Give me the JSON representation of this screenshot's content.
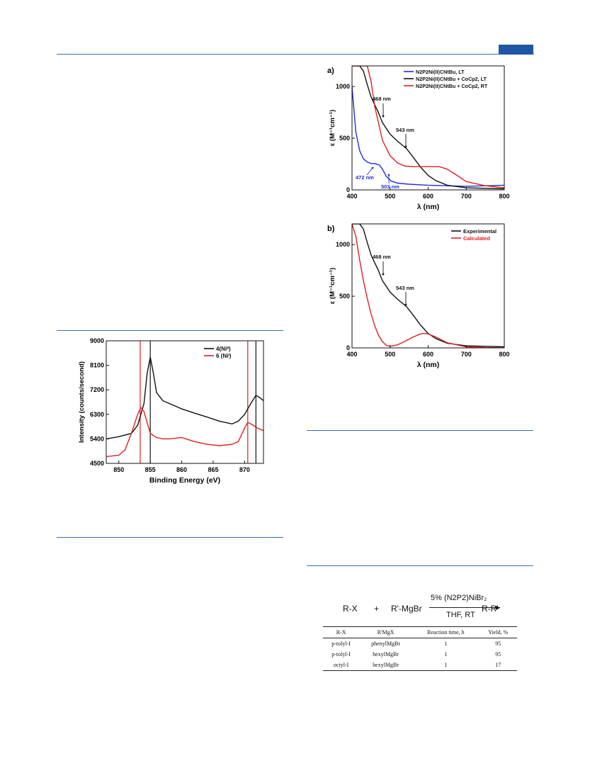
{
  "colors": {
    "rule": "#3b6fb0",
    "black": "#111111",
    "red": "#e02020",
    "blue": "#2030e0"
  },
  "uv_a": {
    "panel_label": "a)",
    "legend": [
      "N2P2Ni(II)CNtBu, LT",
      "N2P2Ni(II)CNtBu + CoCp2, LT",
      "N2P2Ni(II)CNtBu + CoCp2, RT"
    ],
    "annotations": [
      "468 nm",
      "543 nm",
      "472 nm",
      "503 nm"
    ],
    "xlabel": "λ (nm)",
    "ylabel": "ε (M⁻¹cm⁻¹)",
    "xticks": [
      "400",
      "500",
      "600",
      "700",
      "800"
    ],
    "yticks": [
      "0",
      "500",
      "1000"
    ]
  },
  "uv_b": {
    "panel_label": "b)",
    "legend": [
      "Experimental",
      "Calculated"
    ],
    "annotations": [
      "468 nm",
      "543 nm"
    ],
    "xlabel": "λ (nm)",
    "ylabel": "ε (M⁻¹cm⁻¹)",
    "xticks": [
      "400",
      "500",
      "600",
      "700",
      "800"
    ],
    "yticks": [
      "0",
      "500",
      "1000"
    ]
  },
  "xps": {
    "legend": [
      "4(Niᴵᴵ)",
      "6 (Niᴵ)"
    ],
    "xlabel": "Binding Energy (eV)",
    "ylabel": "Intensity (counts/second)",
    "xticks": [
      "850",
      "855",
      "860",
      "865",
      "870"
    ],
    "yticks": [
      "4500",
      "5400",
      "6300",
      "7200",
      "8100",
      "9000"
    ]
  },
  "scheme": {
    "reactant1": "R-X",
    "plus": "+",
    "reactant2": "R'-MgBr",
    "catalyst": "5% (N2P2)NiBr₂",
    "conditions": "THF, RT",
    "product": "R-R'"
  },
  "table": {
    "headers": [
      "R-X",
      "R'MgX",
      "Reaction time, h",
      "Yield, %"
    ],
    "rows": [
      [
        "p-tolyl-I",
        "phenylMgBr",
        "1",
        "95"
      ],
      [
        "p-tolyl-I",
        "hexylMgBr",
        "1",
        "95"
      ],
      [
        "octyl-I",
        "hexylMgBr",
        "1",
        "17"
      ]
    ]
  },
  "chart_data": [
    {
      "type": "line",
      "title": "a)",
      "xlabel": "λ (nm)",
      "ylabel": "ε (M⁻¹cm⁻¹)",
      "xlim": [
        400,
        800
      ],
      "ylim": [
        0,
        1200
      ],
      "legend_position": "top-right",
      "series": [
        {
          "name": "N2P2Ni(II)CNtBu, LT",
          "color": "#2030e0",
          "x": [
            400,
            405,
            410,
            420,
            430,
            440,
            450,
            460,
            472,
            480,
            490,
            503,
            520,
            550,
            600,
            650,
            700,
            750,
            800
          ],
          "y": [
            1000,
            780,
            560,
            380,
            300,
            270,
            255,
            255,
            240,
            200,
            130,
            85,
            65,
            55,
            45,
            40,
            35,
            40,
            45
          ]
        },
        {
          "name": "N2P2Ni(II)CNtBu + CoCp2, LT",
          "color": "#111111",
          "x": [
            400,
            410,
            420,
            430,
            440,
            450,
            460,
            468,
            480,
            500,
            520,
            543,
            560,
            580,
            600,
            620,
            650,
            700,
            750,
            800
          ],
          "y": [
            1200,
            1200,
            1200,
            1150,
            1020,
            900,
            820,
            760,
            650,
            540,
            470,
            400,
            320,
            220,
            140,
            90,
            45,
            20,
            15,
            10
          ]
        },
        {
          "name": "N2P2Ni(II)CNtBu + CoCp2, RT",
          "color": "#e02020",
          "x": [
            400,
            410,
            420,
            430,
            440,
            450,
            460,
            480,
            500,
            520,
            540,
            560,
            600,
            630,
            650,
            680,
            700,
            750,
            800
          ],
          "y": [
            1200,
            1200,
            1200,
            1200,
            1200,
            1050,
            800,
            480,
            330,
            260,
            230,
            225,
            225,
            225,
            200,
            130,
            80,
            40,
            20
          ]
        }
      ]
    },
    {
      "type": "line",
      "title": "b)",
      "xlabel": "λ (nm)",
      "ylabel": "ε (M⁻¹cm⁻¹)",
      "xlim": [
        400,
        800
      ],
      "ylim": [
        0,
        1200
      ],
      "legend_position": "top-right",
      "series": [
        {
          "name": "Experimental",
          "color": "#111111",
          "x": [
            400,
            410,
            420,
            430,
            440,
            450,
            460,
            468,
            480,
            500,
            520,
            543,
            560,
            580,
            600,
            620,
            650,
            700,
            750,
            800
          ],
          "y": [
            1200,
            1200,
            1200,
            1150,
            1020,
            900,
            820,
            760,
            650,
            540,
            470,
            400,
            320,
            220,
            140,
            90,
            45,
            20,
            15,
            10
          ]
        },
        {
          "name": "Calculated",
          "color": "#e02020",
          "x": [
            400,
            410,
            420,
            430,
            440,
            450,
            460,
            470,
            480,
            490,
            500,
            520,
            540,
            560,
            580,
            590,
            600,
            620,
            650,
            700,
            750,
            800
          ],
          "y": [
            1200,
            1080,
            850,
            650,
            480,
            330,
            210,
            120,
            60,
            25,
            15,
            30,
            65,
            105,
            135,
            140,
            135,
            105,
            50,
            10,
            3,
            0
          ]
        }
      ]
    },
    {
      "type": "line",
      "xlabel": "Binding Energy (eV)",
      "ylabel": "Intensity (counts/second)",
      "xlim": [
        848,
        873
      ],
      "ylim": [
        4500,
        9000
      ],
      "legend_position": "top-right",
      "vlines_black": [
        855,
        871.8
      ],
      "vlines_red": [
        853.4,
        870.5
      ],
      "series": [
        {
          "name": "4(Niᴵᴵ)",
          "color": "#111111",
          "x": [
            848,
            850,
            852,
            853,
            854,
            854.5,
            855,
            855.5,
            856,
            857,
            858,
            860,
            862,
            864,
            866,
            868,
            869,
            870,
            871,
            871.8,
            872.5,
            873
          ],
          "y": [
            5400,
            5480,
            5600,
            5900,
            6700,
            7800,
            8400,
            7800,
            7100,
            6800,
            6700,
            6500,
            6350,
            6200,
            6050,
            5950,
            6050,
            6300,
            6700,
            7000,
            6900,
            6800
          ]
        },
        {
          "name": "6 (Niᴵ)",
          "color": "#e02020",
          "x": [
            848,
            850,
            851,
            852,
            853,
            853.5,
            854,
            854.5,
            855,
            856,
            857,
            858,
            860,
            862,
            864,
            866,
            868,
            869,
            870,
            870.5,
            871,
            872,
            873
          ],
          "y": [
            4750,
            4800,
            5000,
            5600,
            6300,
            6550,
            6400,
            6000,
            5600,
            5450,
            5400,
            5400,
            5450,
            5300,
            5200,
            5150,
            5200,
            5300,
            5800,
            6000,
            5950,
            5800,
            5700
          ]
        }
      ]
    }
  ]
}
